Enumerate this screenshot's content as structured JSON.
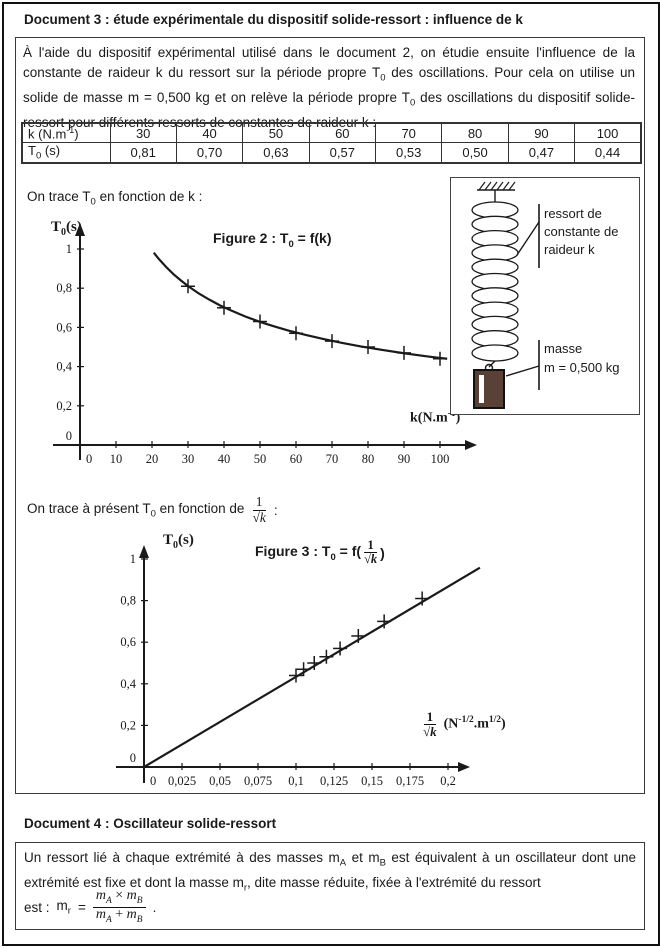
{
  "doc3": {
    "title": "Document 3 : étude expérimentale du dispositif solide-ressort : influence de k",
    "intro_p1": "À l'aide du dispositif expérimental utilisé dans le document 2, on étudie ensuite l'influence de la constante de raideur k du ressort sur la période propre T",
    "intro_s1": "0",
    "intro_p2": " des oscillations. Pour cela on utilise un solide de masse m = 0,500 kg et on relève la période propre T",
    "intro_s2": "0",
    "intro_p3": " des oscillations du dispositif solide-ressort pour différents ressorts de constantes de raideur k :",
    "table": {
      "h1a": "k (N.m",
      "h1sup": "-1",
      "h1b": ")",
      "k_values": [
        "30",
        "40",
        "50",
        "60",
        "70",
        "80",
        "90",
        "100"
      ],
      "h2a": "T",
      "h2sub": "0",
      "h2b": " (s)",
      "t_values": [
        "0,81",
        "0,70",
        "0,63",
        "0,57",
        "0,53",
        "0,50",
        "0,47",
        "0,44"
      ]
    },
    "trace1_p1": "On trace T",
    "trace1_s": "0",
    "trace1_p2": " en fonction de k :",
    "trace2_p1": "On trace à présent T",
    "trace2_s": "0",
    "trace2_p2": " en fonction de",
    "trace2_frac_num": "1",
    "trace2_frac_den": "√k",
    "trace2_p3": " :",
    "fig2": {
      "title_p1": "Figure 2 : T",
      "title_s": "0",
      "title_p2": " = f(k)",
      "ylabel_p1": "T",
      "ylabel_s": "0",
      "ylabel_p2": "(s)",
      "xlabel_a": "k(N.m",
      "xlabel_sup": "-1",
      "xlabel_b": ")"
    },
    "fig3": {
      "title_p1": "Figure 3 : T",
      "title_s": "0",
      "title_p2": " = f(",
      "frac_num": "1",
      "frac_den": "√k",
      "title_p3": ")",
      "ylabel_p1": "T",
      "ylabel_s": "0",
      "ylabel_p2": "(s)",
      "xlabel_frac_num": "1",
      "xlabel_frac_den": "√k",
      "xlabel_a": "(N",
      "xlabel_sup1": "-1/2",
      "xlabel_b": ".m",
      "xlabel_sup2": "1/2",
      "xlabel_c": ")"
    },
    "spring": {
      "label_ressort_l1": "ressort de",
      "label_ressort_l2": "constante de",
      "label_ressort_l3": "raideur k",
      "label_masse_l1": "masse",
      "label_masse_l2": "m = 0,500 kg",
      "mass_color": "#5a4138"
    }
  },
  "doc4": {
    "title": "Document 4 : Oscillateur solide-ressort",
    "p1": "Un ressort lié à chaque extrémité à des masses m",
    "sA": "A",
    "p2": " et m",
    "sB": "B",
    "p3": " est équivalent à un oscillateur dont une extrémité est fixe et dont la masse m",
    "sr": "r",
    "p4": ", dite masse réduite, fixée à l'extrémité du ressort",
    "p5": "est :",
    "formula": {
      "lhs": "m",
      "lhs_sub": "r",
      "eq": "=",
      "num_m1": "m",
      "num_s1": "A",
      "num_op": " × ",
      "num_m2": "m",
      "num_s2": "B",
      "den_m1": "m",
      "den_s1": "A",
      "den_op": " + ",
      "den_m2": "m",
      "den_s2": "B",
      "period": "."
    }
  },
  "chart_data": [
    {
      "id": "figure2",
      "type": "scatter",
      "title": "Figure 2 : T0 = f(k)",
      "xlabel": "k (N.m^-1)",
      "ylabel": "T0 (s)",
      "x": [
        30,
        40,
        50,
        60,
        70,
        80,
        90,
        100
      ],
      "y": [
        0.81,
        0.7,
        0.63,
        0.57,
        0.53,
        0.5,
        0.47,
        0.44
      ],
      "xticks": [
        "0",
        "10",
        "20",
        "30",
        "40",
        "50",
        "60",
        "70",
        "80",
        "90",
        "100"
      ],
      "yticks": [
        "0",
        "0,2",
        "0,4",
        "0,6",
        "0,8",
        "1"
      ],
      "xlim": [
        0,
        100
      ],
      "ylim": [
        0,
        1
      ],
      "grid": false,
      "legend": "none",
      "curve_x": [
        20.5,
        22,
        24,
        26,
        28,
        30,
        33,
        36,
        39,
        42,
        46,
        50,
        54,
        58,
        63,
        68,
        73,
        78,
        84,
        90,
        96,
        100,
        102
      ],
      "curve_y": [
        0.981,
        0.947,
        0.907,
        0.871,
        0.84,
        0.811,
        0.773,
        0.741,
        0.711,
        0.686,
        0.655,
        0.628,
        0.605,
        0.583,
        0.56,
        0.539,
        0.52,
        0.503,
        0.485,
        0.468,
        0.453,
        0.444,
        0.44
      ]
    },
    {
      "id": "figure3",
      "type": "scatter",
      "title": "Figure 3 : T0 = f(1/√k)",
      "xlabel": "1/√k (N^-1/2.m^1/2)",
      "ylabel": "T0 (s)",
      "x": [
        0.1,
        0.105,
        0.112,
        0.12,
        0.129,
        0.141,
        0.158,
        0.183
      ],
      "y": [
        0.44,
        0.47,
        0.5,
        0.53,
        0.57,
        0.63,
        0.7,
        0.81
      ],
      "xticks": [
        "0",
        "0,025",
        "0,05",
        "0,075",
        "0,1",
        "0,125",
        "0,15",
        "0,175",
        "0,2"
      ],
      "yticks": [
        "0",
        "0,2",
        "0,4",
        "0,6",
        "0,8",
        "1"
      ],
      "xlim": [
        0,
        0.2
      ],
      "ylim": [
        0,
        1
      ],
      "grid": false,
      "legend": "none",
      "line_x": [
        0,
        0.221
      ],
      "line_y": [
        0,
        0.958
      ]
    }
  ]
}
